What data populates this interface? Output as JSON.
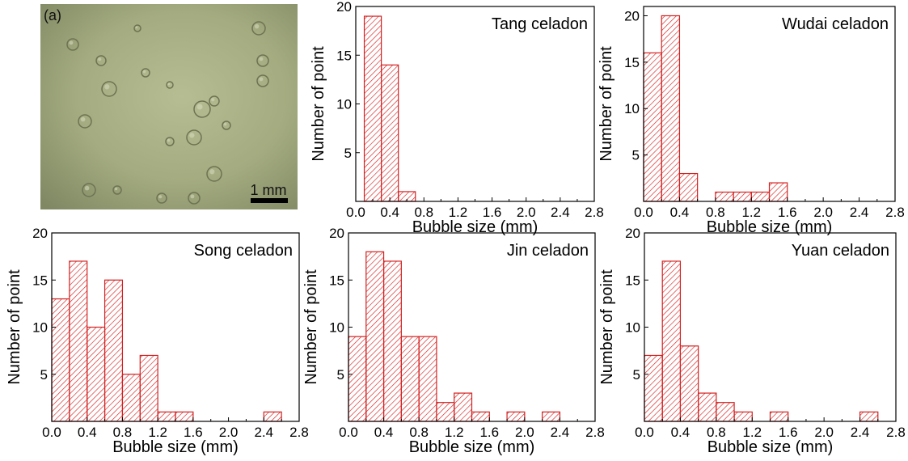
{
  "photo_panel": {
    "panel_label": "(a)",
    "scale_bar_label": "1 mm"
  },
  "chart_data": [
    {
      "type": "bar",
      "title": "Tang celadon",
      "xlabel": "Bubble size (mm)",
      "ylabel": "Number of point",
      "bin_width": 0.2,
      "bin_starts": [
        0.1,
        0.3,
        0.5
      ],
      "values": [
        19,
        14,
        1
      ],
      "xlim": [
        0.0,
        2.8
      ],
      "ylim": [
        0,
        20
      ],
      "xticks": [
        "0.0",
        "0.4",
        "0.8",
        "1.2",
        "1.6",
        "2.0",
        "2.4",
        "2.8"
      ],
      "yticks": [
        "5",
        "10",
        "15",
        "20"
      ],
      "bar_color": "#d42020"
    },
    {
      "type": "bar",
      "title": "Wudai celadon",
      "xlabel": "Bubble size (mm)",
      "ylabel": "Number of point",
      "bin_width": 0.2,
      "bin_starts": [
        0.0,
        0.2,
        0.4,
        0.8,
        1.0,
        1.2,
        1.4
      ],
      "values": [
        16,
        20,
        3,
        1,
        1,
        1,
        2
      ],
      "xlim": [
        0.0,
        2.8
      ],
      "ylim": [
        0,
        21
      ],
      "xticks": [
        "0.0",
        "0.4",
        "0.8",
        "1.2",
        "1.6",
        "2.0",
        "2.4",
        "2.8"
      ],
      "yticks": [
        "5",
        "10",
        "15",
        "20"
      ],
      "bar_color": "#d42020"
    },
    {
      "type": "bar",
      "title": "Song celadon",
      "xlabel": "Bubble size (mm)",
      "ylabel": "Number of point",
      "bin_width": 0.2,
      "bin_starts": [
        0.0,
        0.2,
        0.4,
        0.6,
        0.8,
        1.0,
        1.2,
        1.4,
        2.4
      ],
      "values": [
        13,
        17,
        10,
        15,
        5,
        7,
        1,
        1,
        1
      ],
      "xlim": [
        0.0,
        2.8
      ],
      "ylim": [
        0,
        20
      ],
      "xticks": [
        "0.0",
        "0.4",
        "0.8",
        "1.2",
        "1.6",
        "2.0",
        "2.4",
        "2.8"
      ],
      "yticks": [
        "5",
        "10",
        "15",
        "20"
      ],
      "bar_color": "#d42020"
    },
    {
      "type": "bar",
      "title": "Jin celadon",
      "xlabel": "Bubble size (mm)",
      "ylabel": "Number of point",
      "bin_width": 0.2,
      "bin_starts": [
        0.0,
        0.2,
        0.4,
        0.6,
        0.8,
        1.0,
        1.2,
        1.4,
        1.8,
        2.2
      ],
      "values": [
        9,
        18,
        17,
        9,
        9,
        2,
        3,
        1,
        1,
        1
      ],
      "xlim": [
        0.0,
        2.8
      ],
      "ylim": [
        0,
        20
      ],
      "xticks": [
        "0.0",
        "0.4",
        "0.8",
        "1.2",
        "1.6",
        "2.0",
        "2.4",
        "2.8"
      ],
      "yticks": [
        "5",
        "10",
        "15",
        "20"
      ],
      "bar_color": "#d42020"
    },
    {
      "type": "bar",
      "title": "Yuan celadon",
      "xlabel": "Bubble size (mm)",
      "ylabel": "Number of point",
      "bin_width": 0.2,
      "bin_starts": [
        0.0,
        0.2,
        0.4,
        0.6,
        0.8,
        1.0,
        1.4,
        2.4
      ],
      "values": [
        7,
        17,
        8,
        3,
        2,
        1,
        1,
        1
      ],
      "xlim": [
        0.0,
        2.8
      ],
      "ylim": [
        0,
        20
      ],
      "xticks": [
        "0.0",
        "0.4",
        "0.8",
        "1.2",
        "1.6",
        "2.0",
        "2.4",
        "2.8"
      ],
      "yticks": [
        "5",
        "10",
        "15",
        "20"
      ],
      "bar_color": "#d42020"
    }
  ]
}
